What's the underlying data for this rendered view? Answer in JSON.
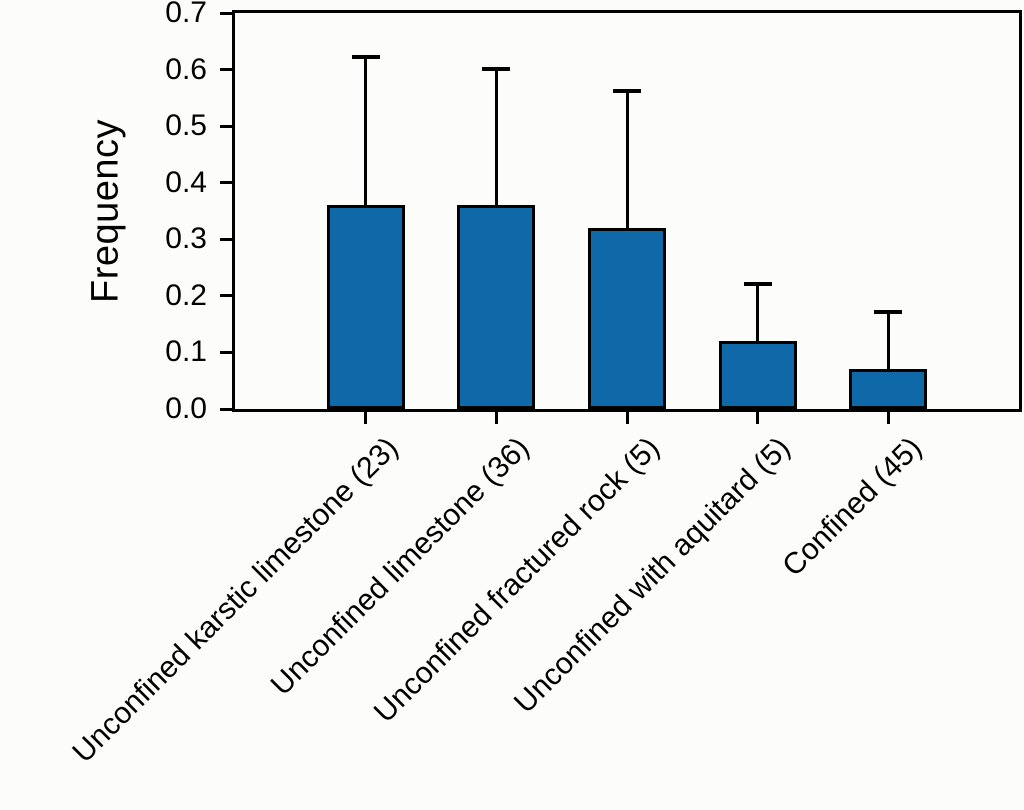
{
  "figure": {
    "background": "#fcfcfb"
  },
  "chart_data": {
    "type": "bar",
    "title": "",
    "xlabel": "",
    "ylabel": "Frequency",
    "ylim": [
      0.0,
      0.7
    ],
    "yticks": [
      "0.0",
      "0.1",
      "0.2",
      "0.3",
      "0.4",
      "0.5",
      "0.6",
      "0.7"
    ],
    "grid": false,
    "legend": null,
    "categories": [
      "Unconfined karstic limestone (23)",
      "Unconfined limestone (36)",
      "Unconfined fractured rock (5)",
      "Unconfined with aquitard (5)",
      "Confined (45)"
    ],
    "values": [
      0.36,
      0.36,
      0.32,
      0.12,
      0.07
    ],
    "errors_upper": [
      0.26,
      0.24,
      0.24,
      0.1,
      0.1
    ],
    "error_bar_tops": [
      0.62,
      0.6,
      0.56,
      0.22,
      0.17
    ],
    "bar_color": "#0f68a8",
    "bar_border_color": "#000000",
    "axis_color": "#000000",
    "error_bar_color": "#000000"
  }
}
